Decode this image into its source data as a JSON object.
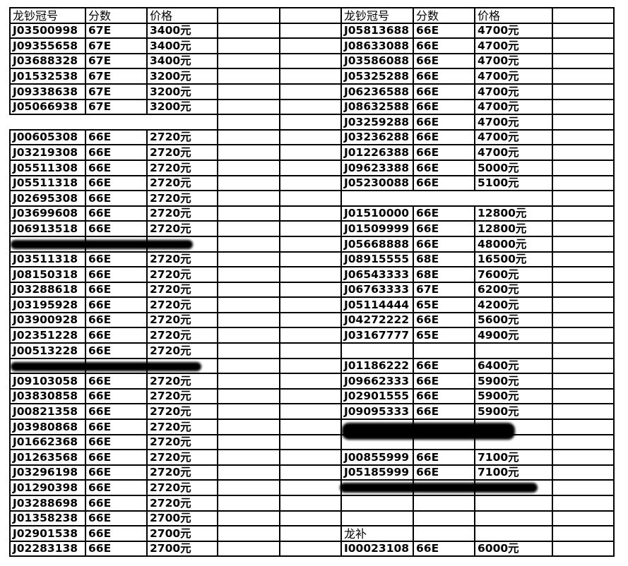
{
  "headers": {
    "serial": "龙钞冠号",
    "score": "分数",
    "price": "价格"
  },
  "left_rows": [
    [
      "J03500998",
      "67E",
      "3400元"
    ],
    [
      "J09355658",
      "67E",
      "3400元"
    ],
    [
      "J03688328",
      "67E",
      "3400元"
    ],
    [
      "J01532538",
      "67E",
      "3200元"
    ],
    [
      "J09338638",
      "67E",
      "3200元"
    ],
    [
      "J05066938",
      "67E",
      "3200元"
    ],
    null,
    [
      "J00605308",
      "66E",
      "2720元"
    ],
    [
      "J03219308",
      "66E",
      "2720元"
    ],
    [
      "J05511308",
      "66E",
      "2720元"
    ],
    [
      "J05511318",
      "66E",
      "2720元"
    ],
    [
      "J02695308",
      "66E",
      "2720元"
    ],
    [
      "J03699608",
      "66E",
      "2720元"
    ],
    [
      "J06913518",
      "66E",
      "2720元"
    ],
    "redacted",
    [
      "J03511318",
      "66E",
      "2720元"
    ],
    [
      "J08150318",
      "66E",
      "2720元"
    ],
    [
      "J03288618",
      "66E",
      "2720元"
    ],
    [
      "J03195928",
      "66E",
      "2720元"
    ],
    [
      "J03900928",
      "66E",
      "2720元"
    ],
    [
      "J02351228",
      "66E",
      "2720元"
    ],
    [
      "J00513228",
      "66E",
      "2720元"
    ],
    "redacted",
    [
      "J09103058",
      "66E",
      "2720元"
    ],
    [
      "J03830858",
      "66E",
      "2720元"
    ],
    [
      "J00821358",
      "66E",
      "2720元"
    ],
    [
      "J03980868",
      "66E",
      "2720元"
    ],
    [
      "J01662368",
      "66E",
      "2720元"
    ],
    [
      "J01263568",
      "66E",
      "2720元"
    ],
    [
      "J03296198",
      "66E",
      "2720元"
    ],
    [
      "J01290398",
      "66E",
      "2720元"
    ],
    [
      "J03288698",
      "66E",
      "2720元"
    ],
    [
      "J01358238",
      "66E",
      "2700元"
    ],
    [
      "J02901538",
      "66E",
      "2700元"
    ],
    [
      "J02283138",
      "66E",
      "2700元"
    ]
  ],
  "right_rows": [
    [
      "J05813688",
      "66E",
      "4700元"
    ],
    [
      "J08633088",
      "66E",
      "4700元"
    ],
    [
      "J03586088",
      "66E",
      "4700元"
    ],
    [
      "J05325288",
      "66E",
      "4700元"
    ],
    [
      "J06236588",
      "66E",
      "4700元"
    ],
    [
      "J08632588",
      "66E",
      "4700元"
    ],
    [
      "J03259288",
      "66E",
      "4700元"
    ],
    [
      "J03236288",
      "66E",
      "4700元"
    ],
    [
      "J01226388",
      "66E",
      "4700元"
    ],
    [
      "J09623388",
      "66E",
      "5000元"
    ],
    [
      "J05230088",
      "66E",
      "5100元"
    ],
    null,
    [
      "J01510000",
      "66E",
      "12800元"
    ],
    [
      "J01509999",
      "66E",
      "12800元"
    ],
    [
      "J05668888",
      "66E",
      "48000元"
    ],
    [
      "J08915555",
      "68E",
      "16500元"
    ],
    [
      "J06543333",
      "68E",
      "7600元"
    ],
    [
      "J06763333",
      "67E",
      "6200元"
    ],
    [
      "J05114444",
      "65E",
      "4200元"
    ],
    [
      "J04272222",
      "66E",
      "5600元"
    ],
    [
      "J03167777",
      "65E",
      "4900元"
    ],
    [
      "",
      "",
      ""
    ],
    [
      "J01186222",
      "66E",
      "6400元"
    ],
    [
      "J09662333",
      "66E",
      "5900元"
    ],
    [
      "J02901555",
      "66E",
      "5900元"
    ],
    [
      "J09095333",
      "66E",
      "5900元"
    ],
    "redacted",
    "redacted",
    [
      "J00855999",
      "66E",
      "7100元"
    ],
    [
      "J05185999",
      "66E",
      "7100元"
    ],
    "redacted",
    [
      "",
      "",
      ""
    ],
    [
      "",
      "",
      ""
    ],
    [
      "龙补",
      "",
      ""
    ],
    [
      "I00023108",
      "66E",
      "6000元"
    ]
  ]
}
